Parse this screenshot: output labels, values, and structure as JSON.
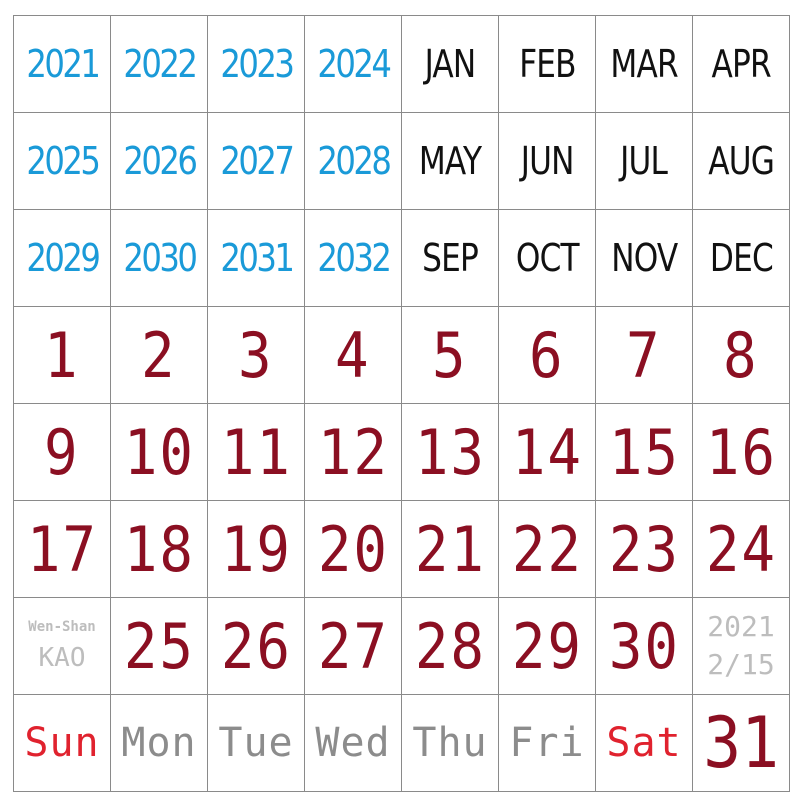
{
  "years": [
    "2021",
    "2022",
    "2023",
    "2024",
    "2025",
    "2026",
    "2027",
    "2028",
    "2029",
    "2030",
    "2031",
    "2032"
  ],
  "months": [
    "JAN",
    "FEB",
    "MAR",
    "APR",
    "MAY",
    "JUN",
    "JUL",
    "AUG",
    "SEP",
    "OCT",
    "NOV",
    "DEC"
  ],
  "days": [
    "1",
    "2",
    "3",
    "4",
    "5",
    "6",
    "7",
    "8",
    "9",
    "10",
    "11",
    "12",
    "13",
    "14",
    "15",
    "16",
    "17",
    "18",
    "19",
    "20",
    "21",
    "22",
    "23",
    "24",
    "25",
    "26",
    "27",
    "28",
    "29",
    "30",
    "31"
  ],
  "weekdays": [
    {
      "label": "Sun",
      "color": "#e0222e"
    },
    {
      "label": "Mon",
      "color": "#8c8c8c"
    },
    {
      "label": "Tue",
      "color": "#8c8c8c"
    },
    {
      "label": "Wed",
      "color": "#8c8c8c"
    },
    {
      "label": "Thu",
      "color": "#8c8c8c"
    },
    {
      "label": "Fri",
      "color": "#8c8c8c"
    },
    {
      "label": "Sat",
      "color": "#e0222e"
    }
  ],
  "credit": {
    "line1": "Wen-Shan",
    "line2": "KAO"
  },
  "datestamp": {
    "line1": "2021",
    "line2": "2/15"
  },
  "colors": {
    "year": "#1a9ad8",
    "month": "#111111",
    "day": "#8b0f22",
    "muted": "#bdbdbd",
    "grid": "#8a8a8a"
  }
}
